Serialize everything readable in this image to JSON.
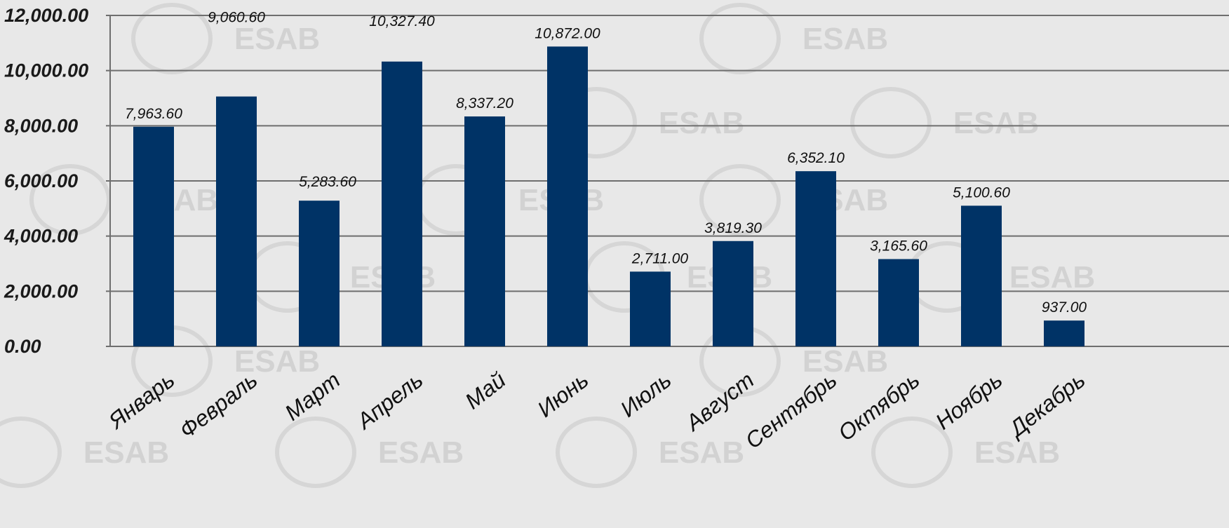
{
  "chart_data": {
    "type": "bar",
    "title": "",
    "xlabel": "",
    "ylabel": "",
    "categories": [
      "Январь",
      "Февраль",
      "Март",
      "Апрель",
      "Май",
      "Июнь",
      "Июль",
      "Август",
      "Сентябрь",
      "Октябрь",
      "Ноябрь",
      "Декабрь"
    ],
    "values": [
      7963.6,
      9060.6,
      5283.6,
      10327.4,
      8337.2,
      10872.0,
      2711.0,
      3819.3,
      6352.1,
      3165.6,
      5100.6,
      937.0
    ],
    "value_labels": [
      "7,963.60",
      "9,060.60",
      "5,283.60",
      "10,327.40",
      "8,337.20",
      "10,872.00",
      "2,711.00",
      "3,819.30",
      "6,352.10",
      "3,165.60",
      "5,100.60",
      "937.00"
    ],
    "ylim": [
      0,
      12000
    ],
    "yticks": [
      0,
      2000,
      4000,
      6000,
      8000,
      10000,
      12000
    ],
    "ytick_labels": [
      "0.00",
      "2,000.00",
      "4,000.00",
      "6,000.00",
      "8,000.00",
      "10,000.00",
      "12,000.00"
    ],
    "grid": true,
    "legend": "none",
    "bar_color": "#003366",
    "gridline_color": "#6e6e6e",
    "background_color": "#e8e8e8",
    "watermark": "ESAB"
  }
}
